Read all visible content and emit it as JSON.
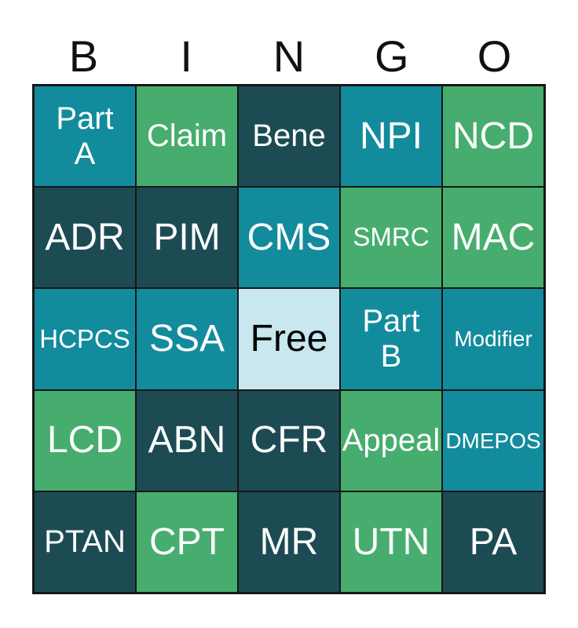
{
  "header": {
    "letters": [
      "B",
      "I",
      "N",
      "G",
      "O"
    ]
  },
  "colors": {
    "teal": "#128b9d",
    "green": "#47ad6e",
    "dark": "#1d4b54",
    "free": "#c8e7ef",
    "text_light": "#ffffff",
    "text_dark": "#000000",
    "border": "#161616",
    "page_bg": "#ffffff"
  },
  "grid": {
    "rows": 5,
    "cols": 5,
    "free_cell_label": "Free",
    "cells": [
      {
        "label": "Part\nA",
        "color": "teal",
        "size": "md"
      },
      {
        "label": "Claim",
        "color": "green",
        "size": "md"
      },
      {
        "label": "Bene",
        "color": "dark",
        "size": "md"
      },
      {
        "label": "NPI",
        "color": "teal",
        "size": "lg"
      },
      {
        "label": "NCD",
        "color": "green",
        "size": "lg"
      },
      {
        "label": "ADR",
        "color": "dark",
        "size": "lg"
      },
      {
        "label": "PIM",
        "color": "dark",
        "size": "lg"
      },
      {
        "label": "CMS",
        "color": "teal",
        "size": "lg"
      },
      {
        "label": "SMRC",
        "color": "green",
        "size": "sm"
      },
      {
        "label": "MAC",
        "color": "green",
        "size": "lg"
      },
      {
        "label": "HCPCS",
        "color": "teal",
        "size": "sm"
      },
      {
        "label": "SSA",
        "color": "teal",
        "size": "lg"
      },
      {
        "label": "Free",
        "color": "free",
        "size": "lg"
      },
      {
        "label": "Part\nB",
        "color": "teal",
        "size": "md"
      },
      {
        "label": "Modifier",
        "color": "teal",
        "size": "xs"
      },
      {
        "label": "LCD",
        "color": "green",
        "size": "lg"
      },
      {
        "label": "ABN",
        "color": "dark",
        "size": "lg"
      },
      {
        "label": "CFR",
        "color": "dark",
        "size": "lg"
      },
      {
        "label": "Appeal",
        "color": "green",
        "size": "md"
      },
      {
        "label": "DMEPOS",
        "color": "teal",
        "size": "xs"
      },
      {
        "label": "PTAN",
        "color": "dark",
        "size": "md"
      },
      {
        "label": "CPT",
        "color": "green",
        "size": "lg"
      },
      {
        "label": "MR",
        "color": "dark",
        "size": "lg"
      },
      {
        "label": "UTN",
        "color": "green",
        "size": "lg"
      },
      {
        "label": "PA",
        "color": "dark",
        "size": "lg"
      }
    ]
  }
}
